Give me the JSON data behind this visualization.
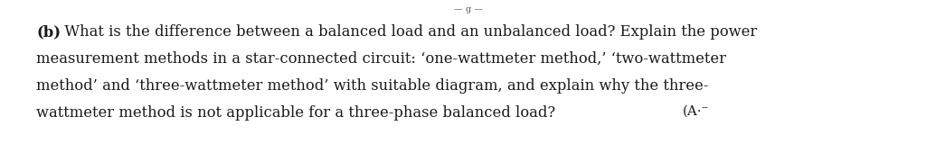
{
  "background_color": "#ffffff",
  "text_color": "#1a1a1a",
  "label_bold": "(b)",
  "line1_rest": " What is the difference between a balanced load and an unbalanced load? Explain the power",
  "line2": "measurement methods in a star-connected circuit: ‘one-wattmeter method,’ ‘two-wattmeter",
  "line3": "method’ and ‘three-wattmeter method’ with suitable diagram, and explain why the three-",
  "line4": "wattmeter method is not applicable for a three-phase balanced load?",
  "marks_annotation": "(A·⁻",
  "top_artifact": "— g —",
  "font_size": 11.8,
  "font_family": "DejaVu Serif",
  "fig_width": 10.35,
  "fig_height": 1.6,
  "dpi": 100
}
